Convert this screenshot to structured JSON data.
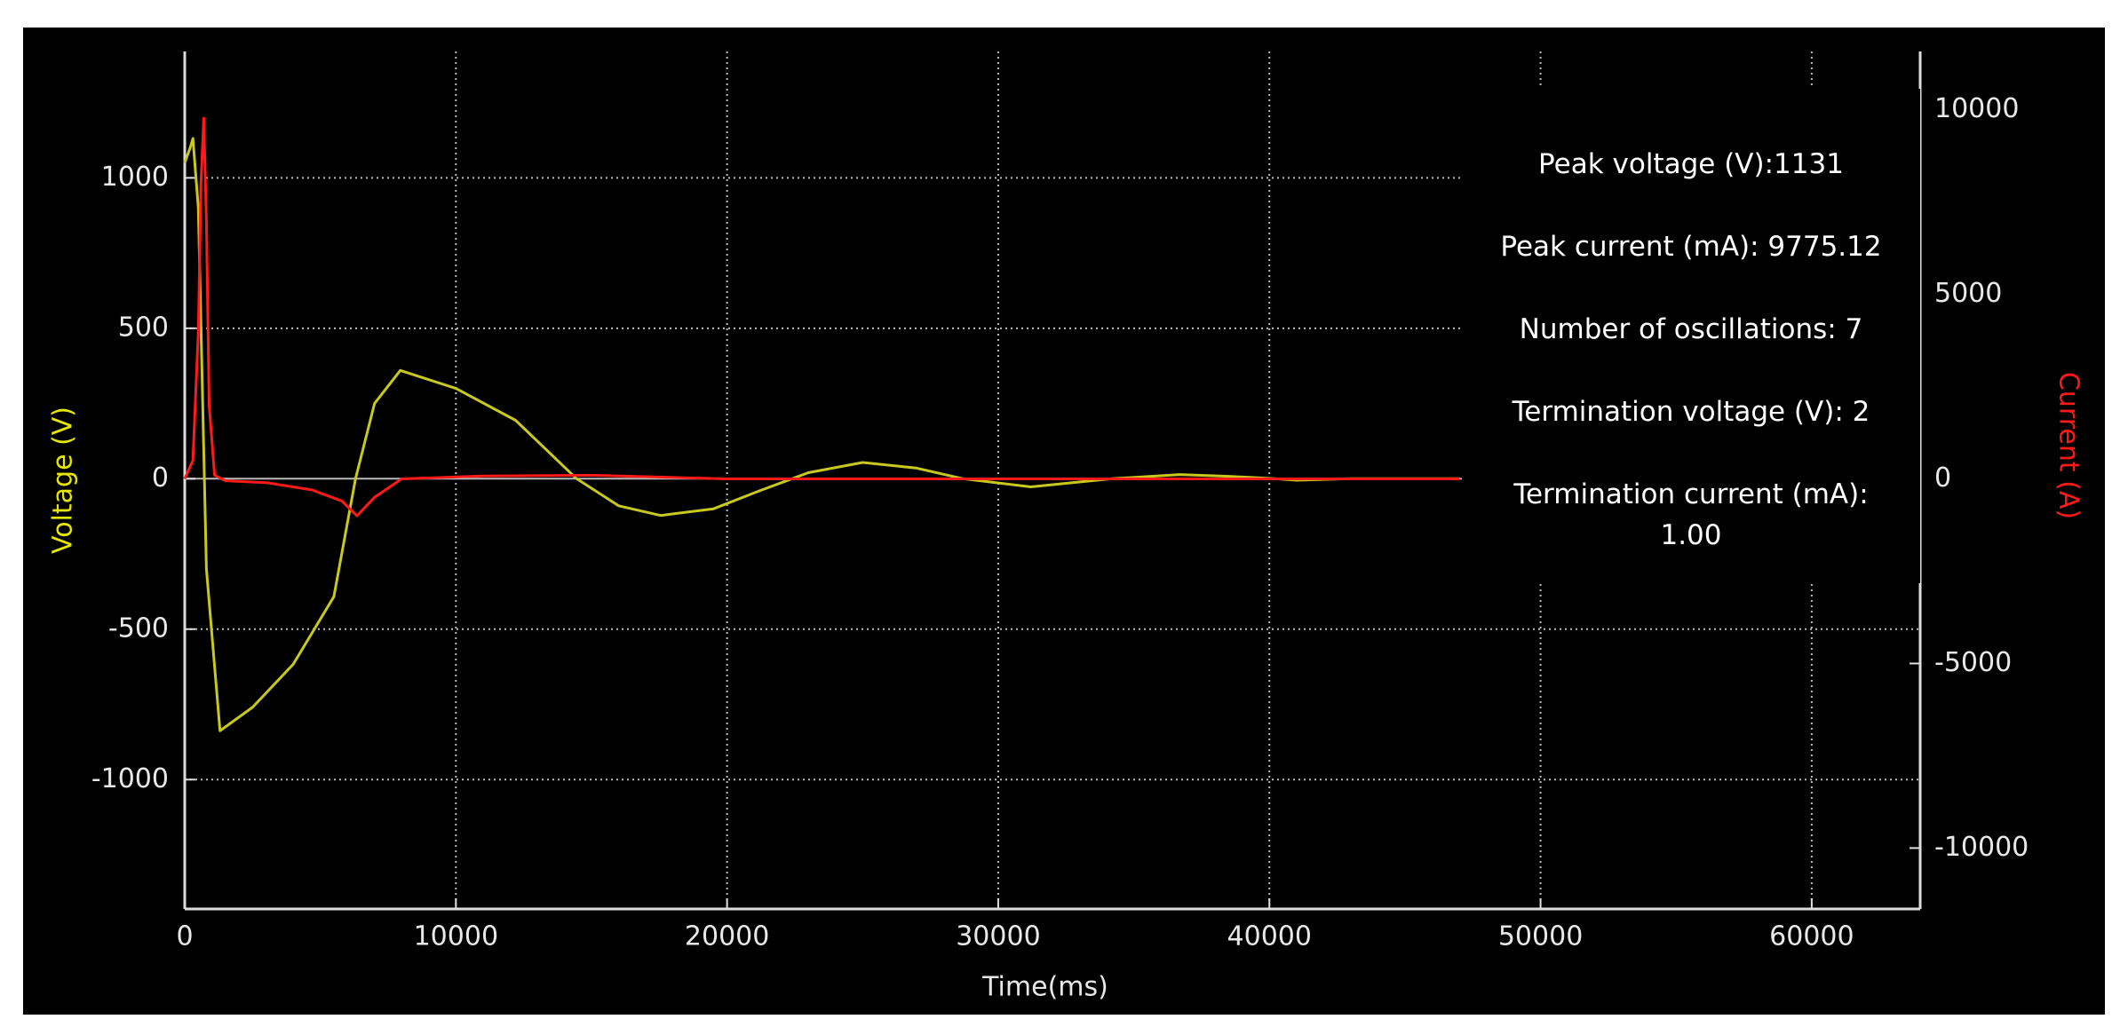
{
  "chart_data": {
    "type": "line",
    "xlabel": "Time(ms)",
    "ylabel": "Voltage (V)",
    "y2label": "Current (A)",
    "xlim": [
      0,
      64000
    ],
    "xticks": [
      0,
      10000,
      20000,
      30000,
      40000,
      50000,
      60000
    ],
    "ylim": [
      -1430,
      1420
    ],
    "yticks": [
      -1000,
      -500,
      0,
      500,
      1000
    ],
    "y2lim": [
      -11650,
      11580
    ],
    "y2ticks": [
      -10000,
      -5000,
      0,
      5000,
      10000
    ],
    "grid": true,
    "series": [
      {
        "color": "#c8c81e",
        "axis": "y",
        "x": [
          0,
          200,
          300,
          500,
          800,
          1300,
          2500,
          4000,
          5500,
          6300,
          7000,
          7950,
          10000,
          12200,
          14450,
          16000,
          17550,
          19500,
          21200,
          23000,
          25000,
          27000,
          28700,
          31200,
          34200,
          36700,
          38500,
          40200,
          41000,
          43000,
          47000
        ],
        "values": [
          1050,
          1100,
          1131,
          900,
          -300,
          -838,
          -760,
          -617,
          -392,
          0,
          250,
          360,
          300,
          194,
          0,
          -90,
          -122,
          -100,
          -40,
          20,
          54,
          35,
          0,
          -27,
          0,
          14,
          8,
          0,
          -5,
          0,
          0
        ]
      },
      {
        "color": "#ff1a1a",
        "axis": "y2",
        "x": [
          0,
          300,
          500,
          600,
          700,
          800,
          900,
          1100,
          1500,
          3000,
          4700,
          5800,
          6350,
          7000,
          8000,
          11000,
          15000,
          20000,
          47000
        ],
        "values": [
          0,
          500,
          4000,
          8000,
          9775,
          7000,
          2000,
          100,
          -50,
          -100,
          -300,
          -600,
          -1000,
          -500,
          0,
          80,
          100,
          0,
          0
        ]
      }
    ]
  },
  "info": [
    "Peak voltage (V):1131",
    "Peak current (mA): 9775.12",
    "Number of oscillations: 7",
    "Termination voltage (V): 2",
    "Termination current (mA): 1.00"
  ]
}
